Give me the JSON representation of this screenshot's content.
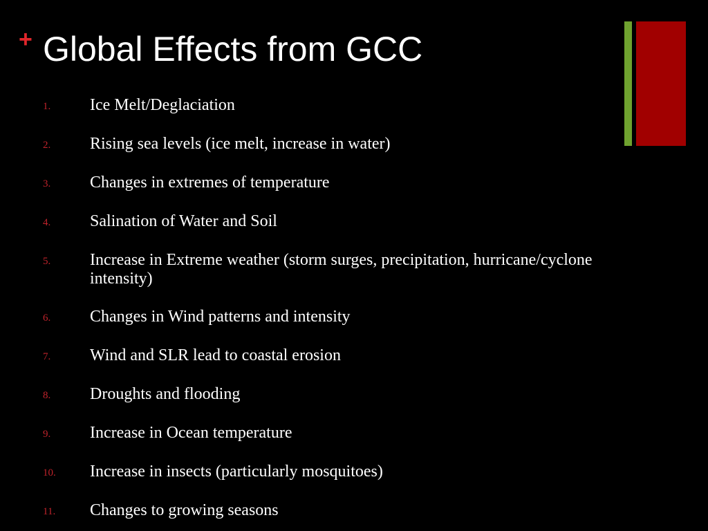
{
  "slide": {
    "title_marker": "+",
    "title": "Global Effects from GCC",
    "colors": {
      "background": "#000000",
      "marker": "#e0262b",
      "number": "#c0232b",
      "green_accent": "#6fa22f",
      "red_accent": "#a10000",
      "text": "#ffffff"
    },
    "items": [
      {
        "number": "1.",
        "text": "Ice Melt/Deglaciation"
      },
      {
        "number": "2.",
        "text": "Rising sea levels (ice melt, increase in water)"
      },
      {
        "number": "3.",
        "text": "Changes in extremes of temperature"
      },
      {
        "number": "4.",
        "text": "Salination of Water and Soil"
      },
      {
        "number": "5.",
        "text": "Increase in Extreme weather (storm surges, precipitation, hurricane/cyclone intensity)"
      },
      {
        "number": "6.",
        "text": "Changes in Wind patterns and intensity"
      },
      {
        "number": "7.",
        "text": "Wind and SLR lead to coastal erosion"
      },
      {
        "number": "8.",
        "text": "Droughts and flooding"
      },
      {
        "number": "9.",
        "text": "Increase in Ocean temperature"
      },
      {
        "number": "10.",
        "text": "Increase in insects (particularly mosquitoes)"
      },
      {
        "number": "11.",
        "text": "Changes to growing seasons"
      }
    ]
  }
}
